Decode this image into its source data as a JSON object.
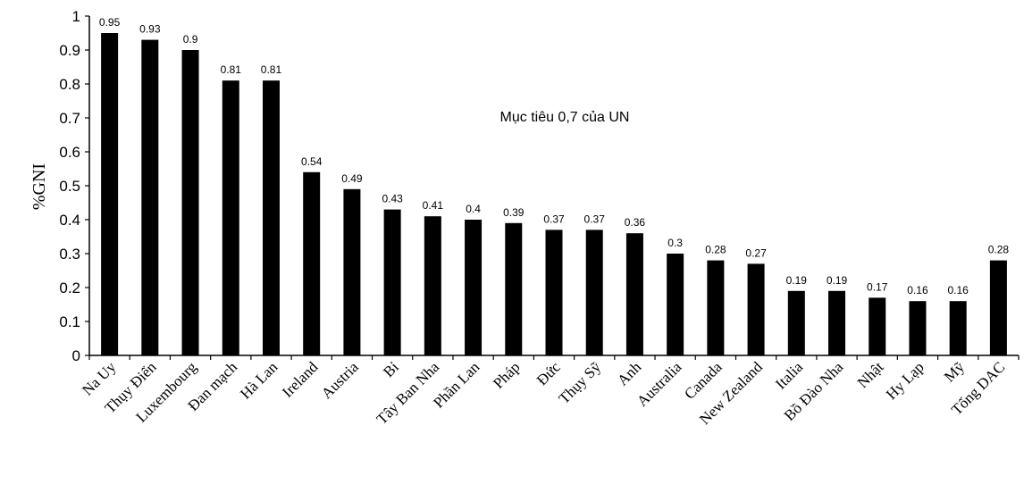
{
  "chart_data": {
    "type": "bar",
    "ylabel": "%GNI",
    "xlabel": "",
    "ylim": [
      0,
      1
    ],
    "yticks": [
      "0",
      "0.1",
      "0.2",
      "0.3",
      "0.4",
      "0.5",
      "0.6",
      "0.7",
      "0.8",
      "0.9",
      "1"
    ],
    "categories": [
      "Na Uy",
      "Thụy Điển",
      "Luxembourg",
      "Đan mạch",
      "Hà Lan",
      "Ireland",
      "Austria",
      "Bỉ",
      "Tây Ban Nha",
      "Phần Lan",
      "Pháp",
      "Đức",
      "Thụy Sỹ",
      "Anh",
      "Australia",
      "Canada",
      "New Zealand",
      "Italia",
      "Bồ Đào Nha",
      "Nhật",
      "Hy Lạp",
      "Mỹ",
      "Tổng DAC"
    ],
    "values": [
      0.95,
      0.93,
      0.9,
      0.81,
      0.81,
      0.54,
      0.49,
      0.43,
      0.41,
      0.4,
      0.39,
      0.37,
      0.37,
      0.36,
      0.3,
      0.28,
      0.27,
      0.19,
      0.19,
      0.17,
      0.16,
      0.16,
      0.28
    ],
    "value_labels": [
      "0.95",
      "0.93",
      "0.9",
      "0.81",
      "0.81",
      "0.54",
      "0.49",
      "0.43",
      "0.41",
      "0.4",
      "0.39",
      "0.37",
      "0.37",
      "0.36",
      "0.3",
      "0.28",
      "0.27",
      "0.19",
      "0.19",
      "0.17",
      "0.16",
      "0.16",
      "0.28"
    ],
    "annotation": "Mục tiêu 0,7 của UN",
    "bar_color": "#000000",
    "grid": false,
    "legend": "none"
  }
}
